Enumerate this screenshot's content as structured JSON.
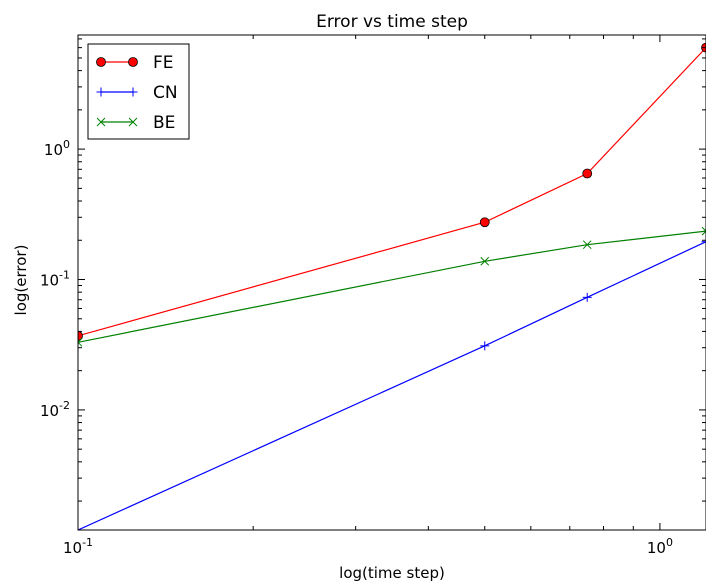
{
  "chart_data": {
    "type": "line",
    "title": "Error vs time step",
    "xlabel": "log(time step)",
    "ylabel": "log(error)",
    "xscale": "log",
    "yscale": "log",
    "xlim": [
      0.1,
      1.2
    ],
    "ylim": [
      0.0012,
      7.5
    ],
    "x_ticks": [
      {
        "value": 0.1,
        "base": "10",
        "exp": "-1"
      },
      {
        "value": 1.0,
        "base": "10",
        "exp": "0"
      }
    ],
    "y_ticks": [
      {
        "value": 0.01,
        "base": "10",
        "exp": "-2"
      },
      {
        "value": 0.1,
        "base": "10",
        "exp": "-1"
      },
      {
        "value": 1.0,
        "base": "10",
        "exp": "0"
      }
    ],
    "legend_position": "top-left",
    "grid": false,
    "series": [
      {
        "name": "FE",
        "color": "#ff0000",
        "marker": "circle",
        "x": [
          0.1,
          0.5,
          0.75,
          1.2
        ],
        "y": [
          0.037,
          0.275,
          0.65,
          6.0
        ]
      },
      {
        "name": "CN",
        "color": "#0000ff",
        "marker": "plus",
        "x": [
          0.1,
          0.5,
          0.75,
          1.2
        ],
        "y": [
          0.0012,
          0.031,
          0.073,
          0.195
        ]
      },
      {
        "name": "BE",
        "color": "#008000",
        "marker": "x",
        "x": [
          0.1,
          0.5,
          0.75,
          1.2
        ],
        "y": [
          0.033,
          0.138,
          0.185,
          0.235
        ]
      }
    ]
  }
}
